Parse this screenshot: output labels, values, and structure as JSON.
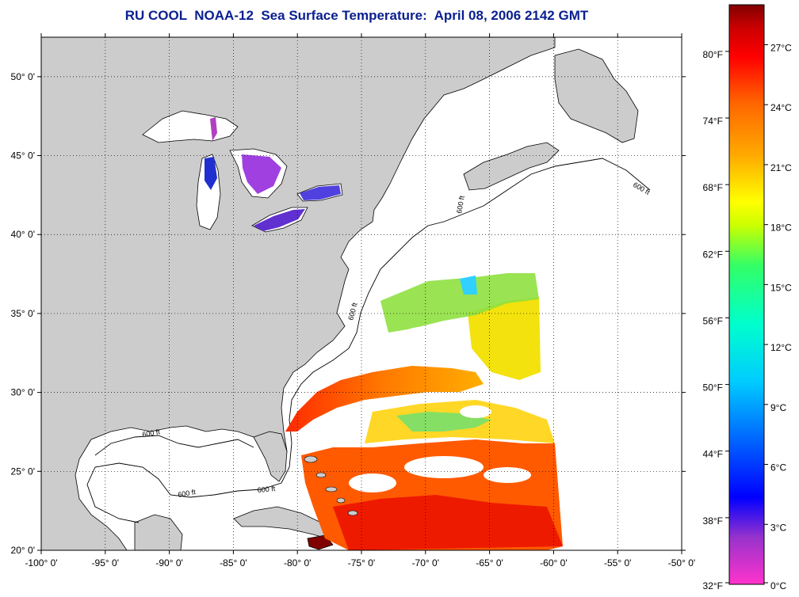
{
  "title": "RU COOL  NOAA-12  Sea Surface Temperature:  April 08, 2006 2142 GMT",
  "map": {
    "lon_range": [
      -100,
      -50
    ],
    "lat_range": [
      20,
      52.5
    ],
    "lat_ticks": [
      {
        "value": 20,
        "label": "20° 0'"
      },
      {
        "value": 25,
        "label": "25° 0'"
      },
      {
        "value": 30,
        "label": "30° 0'"
      },
      {
        "value": 35,
        "label": "35° 0'"
      },
      {
        "value": 40,
        "label": "40° 0'"
      },
      {
        "value": 45,
        "label": "45° 0'"
      },
      {
        "value": 50,
        "label": "50° 0'"
      }
    ],
    "lon_ticks": [
      {
        "value": -100,
        "label": "-100° 0'"
      },
      {
        "value": -95,
        "label": "-95° 0'"
      },
      {
        "value": -90,
        "label": "-90° 0'"
      },
      {
        "value": -85,
        "label": "-85° 0'"
      },
      {
        "value": -80,
        "label": "-80° 0'"
      },
      {
        "value": -75,
        "label": "-75° 0'"
      },
      {
        "value": -70,
        "label": "-70° 0'"
      },
      {
        "value": -65,
        "label": "-65° 0'"
      },
      {
        "value": -60,
        "label": "-60° 0'"
      },
      {
        "value": -55,
        "label": "-55° 0'"
      },
      {
        "value": -50,
        "label": "-50° 0'"
      }
    ],
    "contour_label": "600 ft",
    "colors": {
      "land": "#cccccc",
      "water": "#ffffff",
      "grid": "#000000"
    }
  },
  "colorbar": {
    "fahrenheit_labels": [
      "80°F",
      "74°F",
      "68°F",
      "62°F",
      "56°F",
      "50°F",
      "44°F",
      "38°F",
      "32°F"
    ],
    "celsius_labels": [
      "27°C",
      "24°C",
      "21°C",
      "18°C",
      "15°C",
      "12°C",
      "9°C",
      "6°C",
      "3°C",
      "0°C"
    ],
    "celsius_range": [
      0,
      29
    ],
    "color_stops": [
      "#ff33cc",
      "#9933cc",
      "#0000ff",
      "#0066ff",
      "#00ccff",
      "#00ffcc",
      "#33ff66",
      "#ccff00",
      "#ffff00",
      "#ffaa00",
      "#ff6600",
      "#ff0000",
      "#cc0000",
      "#800000"
    ]
  }
}
